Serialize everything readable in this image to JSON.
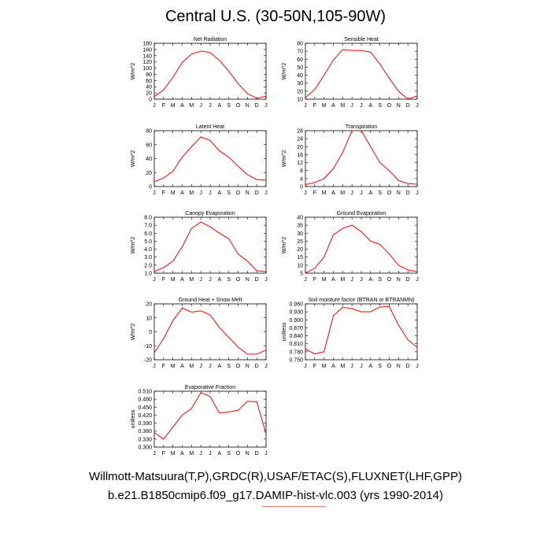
{
  "title": "Central U.S. (30-50N,105-90W)",
  "footer": {
    "line1": "Willmott-Matsuura(T,P),GRDC(R),USAF/ETAC(S),FLUXNET(LHF,GPP)",
    "line2": "b.e21.B1850cmip6.f09_g17.DAMIP-hist-vlc.003 (yrs 1990-2014)"
  },
  "colors": {
    "line": "#ff0000",
    "axis": "#000000",
    "mark_underline": "#e07a7a"
  },
  "chart_data": [
    {
      "type": "line",
      "title": "Net Radiation",
      "ylabel": "W/m^2",
      "x": [
        "J",
        "F",
        "M",
        "A",
        "M",
        "J",
        "J",
        "A",
        "S",
        "O",
        "N",
        "D",
        "J"
      ],
      "yticks": [
        "0",
        "20",
        "40",
        "60",
        "80",
        "100",
        "120",
        "140",
        "160",
        "180"
      ],
      "ylim": [
        0,
        180
      ],
      "series": [
        {
          "values": [
            8,
            30,
            70,
            118,
            145,
            155,
            150,
            125,
            90,
            50,
            18,
            3,
            10
          ]
        }
      ]
    },
    {
      "type": "line",
      "title": "Sensible Heat",
      "ylabel": "W/m^2",
      "x": [
        "J",
        "F",
        "M",
        "A",
        "M",
        "J",
        "J",
        "A",
        "S",
        "O",
        "N",
        "D",
        "J"
      ],
      "yticks": [
        "10",
        "20",
        "30",
        "40",
        "50",
        "60",
        "70",
        "80"
      ],
      "ylim": [
        10,
        80
      ],
      "series": [
        {
          "values": [
            12,
            22,
            40,
            59,
            72,
            71,
            71,
            69,
            54,
            36,
            20,
            10,
            14
          ]
        }
      ]
    },
    {
      "type": "line",
      "title": "Latent Heat",
      "ylabel": "W/m^2",
      "x": [
        "J",
        "F",
        "M",
        "A",
        "M",
        "J",
        "J",
        "A",
        "S",
        "O",
        "N",
        "D",
        "J"
      ],
      "yticks": [
        "0",
        "20",
        "40",
        "60",
        "80"
      ],
      "ylim": [
        0,
        80
      ],
      "series": [
        {
          "values": [
            7,
            12,
            22,
            42,
            57,
            71,
            66,
            51,
            42,
            29,
            17,
            10,
            9
          ]
        }
      ]
    },
    {
      "type": "line",
      "title": "Transpiration",
      "ylabel": "W/m^2",
      "x": [
        "J",
        "F",
        "M",
        "A",
        "M",
        "J",
        "J",
        "A",
        "S",
        "O",
        "N",
        "D",
        "J"
      ],
      "yticks": [
        "0",
        "4",
        "8",
        "12",
        "16",
        "20",
        "24",
        "28"
      ],
      "ylim": [
        0,
        28
      ],
      "series": [
        {
          "values": [
            1,
            2,
            4,
            9,
            17,
            28,
            28,
            20,
            12,
            8,
            3,
            1.5,
            1.2
          ]
        }
      ]
    },
    {
      "type": "line",
      "title": "Canopy Evaporation",
      "ylabel": "W/m^2",
      "x": [
        "J",
        "F",
        "M",
        "A",
        "M",
        "J",
        "J",
        "A",
        "S",
        "O",
        "N",
        "D",
        "J"
      ],
      "yticks": [
        "1.0",
        "2.0",
        "3.0",
        "4.0",
        "5.0",
        "6.0",
        "7.0",
        "8.0"
      ],
      "ylim": [
        1,
        8
      ],
      "series": [
        {
          "values": [
            1.2,
            1.7,
            2.5,
            4.3,
            6.6,
            7.4,
            6.8,
            6.0,
            5.3,
            3.4,
            2.5,
            1.3,
            1.2
          ]
        }
      ]
    },
    {
      "type": "line",
      "title": "Ground Evaporation",
      "ylabel": "W/m^2",
      "x": [
        "J",
        "F",
        "M",
        "A",
        "M",
        "J",
        "J",
        "A",
        "S",
        "O",
        "N",
        "D",
        "J"
      ],
      "yticks": [
        "5",
        "10",
        "15",
        "20",
        "25",
        "30",
        "35",
        "40"
      ],
      "ylim": [
        5,
        40
      ],
      "series": [
        {
          "values": [
            5,
            8,
            15,
            29,
            33,
            35,
            31,
            25,
            23,
            17,
            10,
            7,
            6
          ]
        }
      ]
    },
    {
      "type": "line",
      "title": "Ground Heat + Snow Melt",
      "ylabel": "W/m^2",
      "x": [
        "J",
        "F",
        "M",
        "A",
        "M",
        "J",
        "J",
        "A",
        "S",
        "O",
        "N",
        "D",
        "J"
      ],
      "yticks": [
        "-20",
        "-10",
        "0",
        "10",
        "20"
      ],
      "ylim": [
        -20,
        20
      ],
      "series": [
        {
          "values": [
            -15,
            -5,
            8,
            17,
            14,
            15,
            12,
            3,
            -4,
            -11,
            -16,
            -16,
            -13
          ]
        }
      ]
    },
    {
      "type": "line",
      "title": "Soil moisture factor (BTRAN or BTRANMN)",
      "ylabel": "unitless",
      "x": [
        "J",
        "F",
        "M",
        "A",
        "M",
        "J",
        "J",
        "A",
        "S",
        "O",
        "N",
        "D",
        "J"
      ],
      "yticks": [
        "0.750",
        "0.780",
        "0.810",
        "0.840",
        "0.870",
        "0.900",
        "0.930",
        "0.960"
      ],
      "ylim": [
        0.75,
        0.96
      ],
      "series": [
        {
          "values": [
            0.79,
            0.772,
            0.78,
            0.915,
            0.947,
            0.942,
            0.93,
            0.93,
            0.948,
            0.95,
            0.88,
            0.825,
            0.796
          ]
        }
      ]
    },
    {
      "type": "line",
      "title": "Evaporative Fraction",
      "ylabel": "unitless",
      "x": [
        "J",
        "F",
        "M",
        "A",
        "M",
        "J",
        "J",
        "A",
        "S",
        "O",
        "N",
        "D",
        "J"
      ],
      "yticks": [
        "0.300",
        "0.330",
        "0.360",
        "0.390",
        "0.420",
        "0.450",
        "0.480",
        "0.510"
      ],
      "ylim": [
        0.3,
        0.51
      ],
      "series": [
        {
          "values": [
            0.355,
            0.33,
            0.375,
            0.42,
            0.445,
            0.505,
            0.49,
            0.428,
            0.432,
            0.438,
            0.472,
            0.47,
            0.35
          ]
        }
      ]
    }
  ]
}
